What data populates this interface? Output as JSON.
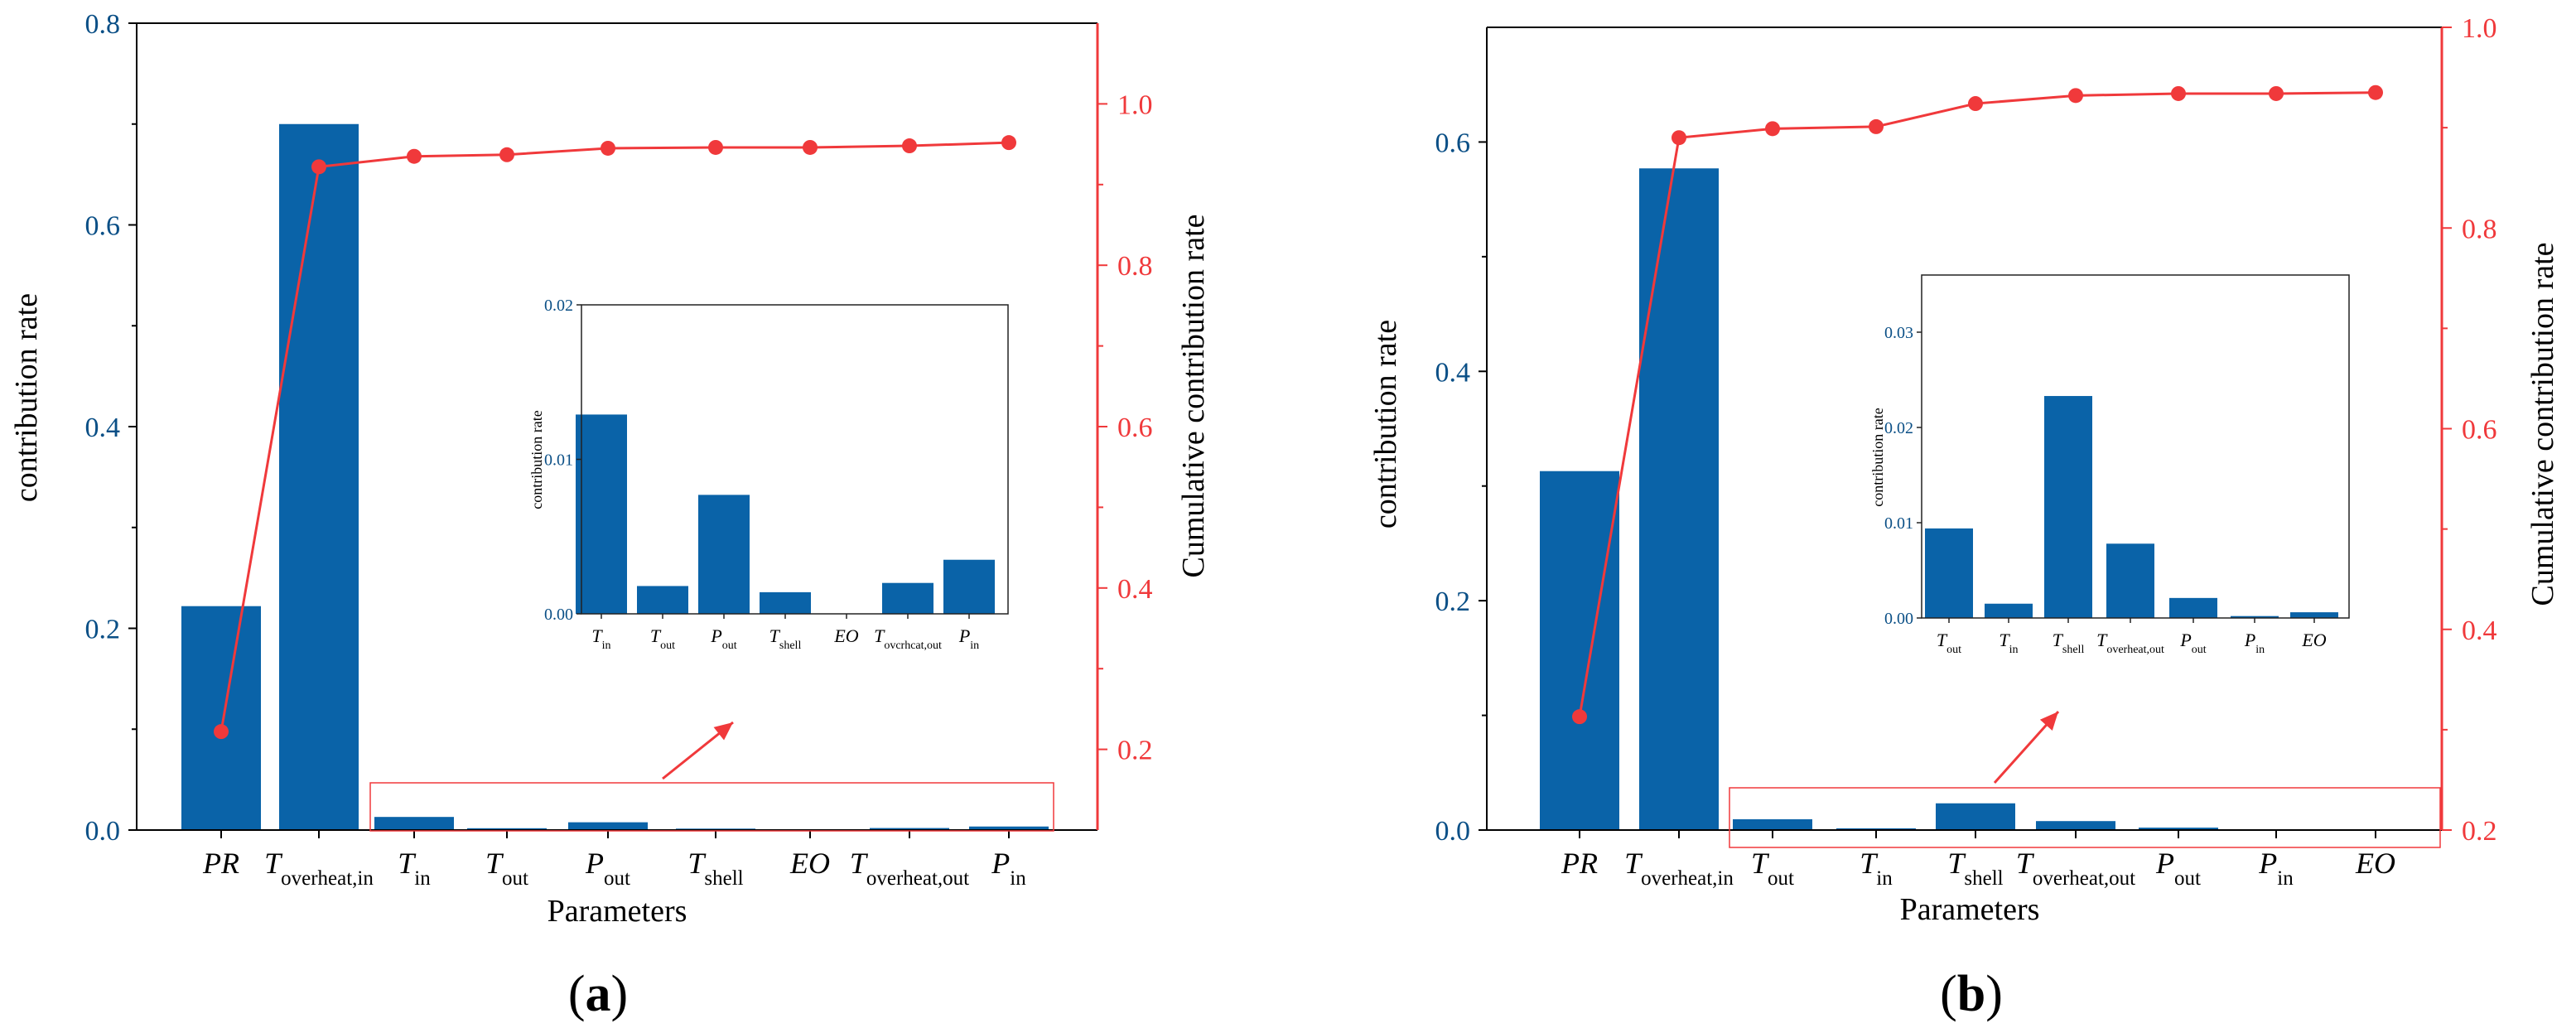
{
  "colors": {
    "bar": "#0a63a8",
    "line": "#f0393b",
    "axis": "#000000",
    "right_axis": "#f0393b",
    "highlight_box": "#f0393b"
  },
  "chart_data": [
    {
      "type": "bar",
      "panel_label": "(a)",
      "panel_label_parts": {
        "open": "(",
        "letter": "a",
        "close": ")"
      },
      "xlabel": "Parameters",
      "ylabel": "contribution rate",
      "y2label": "Cumulative contribution rate",
      "ylim": [
        0,
        0.8
      ],
      "y2lim": [
        0.1,
        1.1
      ],
      "yticks": [
        "0.0",
        "0.2",
        "0.4",
        "0.6",
        "0.8"
      ],
      "y2ticks": [
        "0.2",
        "0.4",
        "0.6",
        "0.8",
        "1.0"
      ],
      "categories": [
        {
          "main": "PR",
          "sub": ""
        },
        {
          "main": "T",
          "sub": "overheat,in"
        },
        {
          "main": "T",
          "sub": "in"
        },
        {
          "main": "T",
          "sub": "out"
        },
        {
          "main": "P",
          "sub": "out"
        },
        {
          "main": "T",
          "sub": "shell"
        },
        {
          "main": "EO",
          "sub": ""
        },
        {
          "main": "T",
          "sub": "overheat,out"
        },
        {
          "main": "P",
          "sub": "in"
        }
      ],
      "values": [
        0.222,
        0.7,
        0.013,
        0.0018,
        0.0077,
        0.0014,
        0.0,
        0.002,
        0.0035
      ],
      "cumulative": [
        0.222,
        0.922,
        0.935,
        0.937,
        0.945,
        0.946,
        0.946,
        0.948,
        0.952
      ],
      "inset": {
        "ylabel": "contribution rate",
        "ylim": [
          0,
          0.02
        ],
        "yticks": [
          "0.00",
          "0.01",
          "0.02"
        ],
        "categories": [
          {
            "main": "T",
            "sub": "in"
          },
          {
            "main": "T",
            "sub": "out"
          },
          {
            "main": "P",
            "sub": "out"
          },
          {
            "main": "T",
            "sub": "shell"
          },
          {
            "main": "EO",
            "sub": ""
          },
          {
            "main": "T",
            "sub": "ovcrhcat,out"
          },
          {
            "main": "P",
            "sub": "in"
          }
        ],
        "values": [
          0.0129,
          0.0018,
          0.0077,
          0.0014,
          0.0,
          0.002,
          0.0035
        ]
      }
    },
    {
      "type": "bar",
      "panel_label": "(b)",
      "panel_label_parts": {
        "open": "(",
        "letter": "b",
        "close": ")"
      },
      "xlabel": "Parameters",
      "ylabel": "contribution rate",
      "y2label": "Cumulative contribution rate",
      "ylim": [
        0,
        0.7
      ],
      "y2lim": [
        0.2,
        1.0
      ],
      "yticks": [
        "0.0",
        "0.2",
        "0.4",
        "0.6"
      ],
      "y2ticks": [
        "0.2",
        "0.4",
        "0.6",
        "0.8",
        "1.0"
      ],
      "categories": [
        {
          "main": "PR",
          "sub": ""
        },
        {
          "main": "T",
          "sub": "overheat,in"
        },
        {
          "main": "T",
          "sub": "out"
        },
        {
          "main": "T",
          "sub": "in"
        },
        {
          "main": "T",
          "sub": "shell"
        },
        {
          "main": "T",
          "sub": "overheat,out"
        },
        {
          "main": "P",
          "sub": "out"
        },
        {
          "main": "P",
          "sub": "in"
        },
        {
          "main": "EO",
          "sub": ""
        }
      ],
      "values": [
        0.313,
        0.577,
        0.0094,
        0.0015,
        0.0233,
        0.0078,
        0.0021,
        0.0002,
        0.0006
      ],
      "cumulative": [
        0.313,
        0.89,
        0.899,
        0.901,
        0.924,
        0.932,
        0.934,
        0.934,
        0.935
      ],
      "inset": {
        "ylabel": "contribution rate",
        "ylim": [
          0,
          0.036
        ],
        "yticks": [
          "0.00",
          "0.01",
          "0.02",
          "0.03"
        ],
        "categories": [
          {
            "main": "T",
            "sub": "out"
          },
          {
            "main": "T",
            "sub": "in"
          },
          {
            "main": "T",
            "sub": "shell"
          },
          {
            "main": "T",
            "sub": "overheat,out"
          },
          {
            "main": "P",
            "sub": "out"
          },
          {
            "main": "P",
            "sub": "in"
          },
          {
            "main": "EO",
            "sub": ""
          }
        ],
        "values": [
          0.0094,
          0.0015,
          0.0233,
          0.0078,
          0.0021,
          0.0002,
          0.0006
        ]
      }
    }
  ]
}
